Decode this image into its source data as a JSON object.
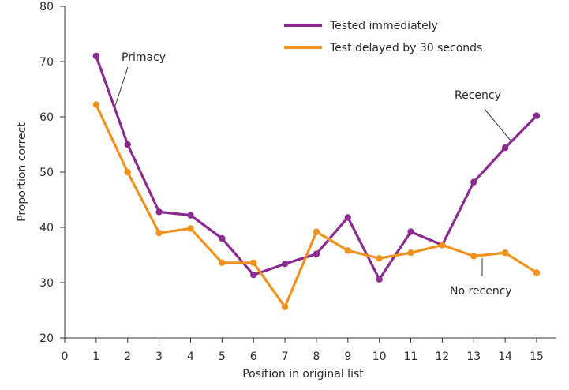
{
  "chart_data": {
    "type": "line",
    "xlabel": "Position in original list",
    "ylabel": "Proportion correct",
    "xlim": [
      0,
      15
    ],
    "ylim": [
      20,
      80
    ],
    "x_ticks": [
      "0",
      "1",
      "2",
      "3",
      "4",
      "5",
      "6",
      "7",
      "8",
      "9",
      "10",
      "11",
      "12",
      "13",
      "14",
      "15"
    ],
    "y_ticks": [
      "20",
      "30",
      "40",
      "50",
      "60",
      "70",
      "80"
    ],
    "grid": false,
    "legend_position": "top-right",
    "series": [
      {
        "name": "Tested immediately",
        "color": "#8b2a8f",
        "x": [
          1,
          2,
          3,
          4,
          5,
          6,
          7,
          8,
          9,
          10,
          11,
          12,
          13,
          14,
          15
        ],
        "values": [
          71,
          55,
          42.8,
          42.2,
          38,
          31.4,
          33.4,
          35.2,
          41.8,
          30.6,
          39.2,
          36.8,
          48.2,
          54.4,
          60.2
        ]
      },
      {
        "name": "Test delayed by 30 seconds",
        "color": "#f0921e",
        "x": [
          1,
          2,
          3,
          4,
          5,
          6,
          7,
          8,
          9,
          10,
          11,
          12,
          13,
          14,
          15
        ],
        "values": [
          62.2,
          50,
          39,
          39.8,
          33.6,
          33.6,
          25.6,
          39.2,
          35.8,
          34.4,
          35.4,
          36.8,
          34.8,
          35.4,
          31.8
        ]
      }
    ],
    "annotations": [
      {
        "text": "Primacy",
        "x": 1.6,
        "y": 67
      },
      {
        "text": "Recency",
        "x": 14,
        "y": 56
      },
      {
        "text": "No recency",
        "x": 12.6,
        "y": 33
      }
    ]
  }
}
